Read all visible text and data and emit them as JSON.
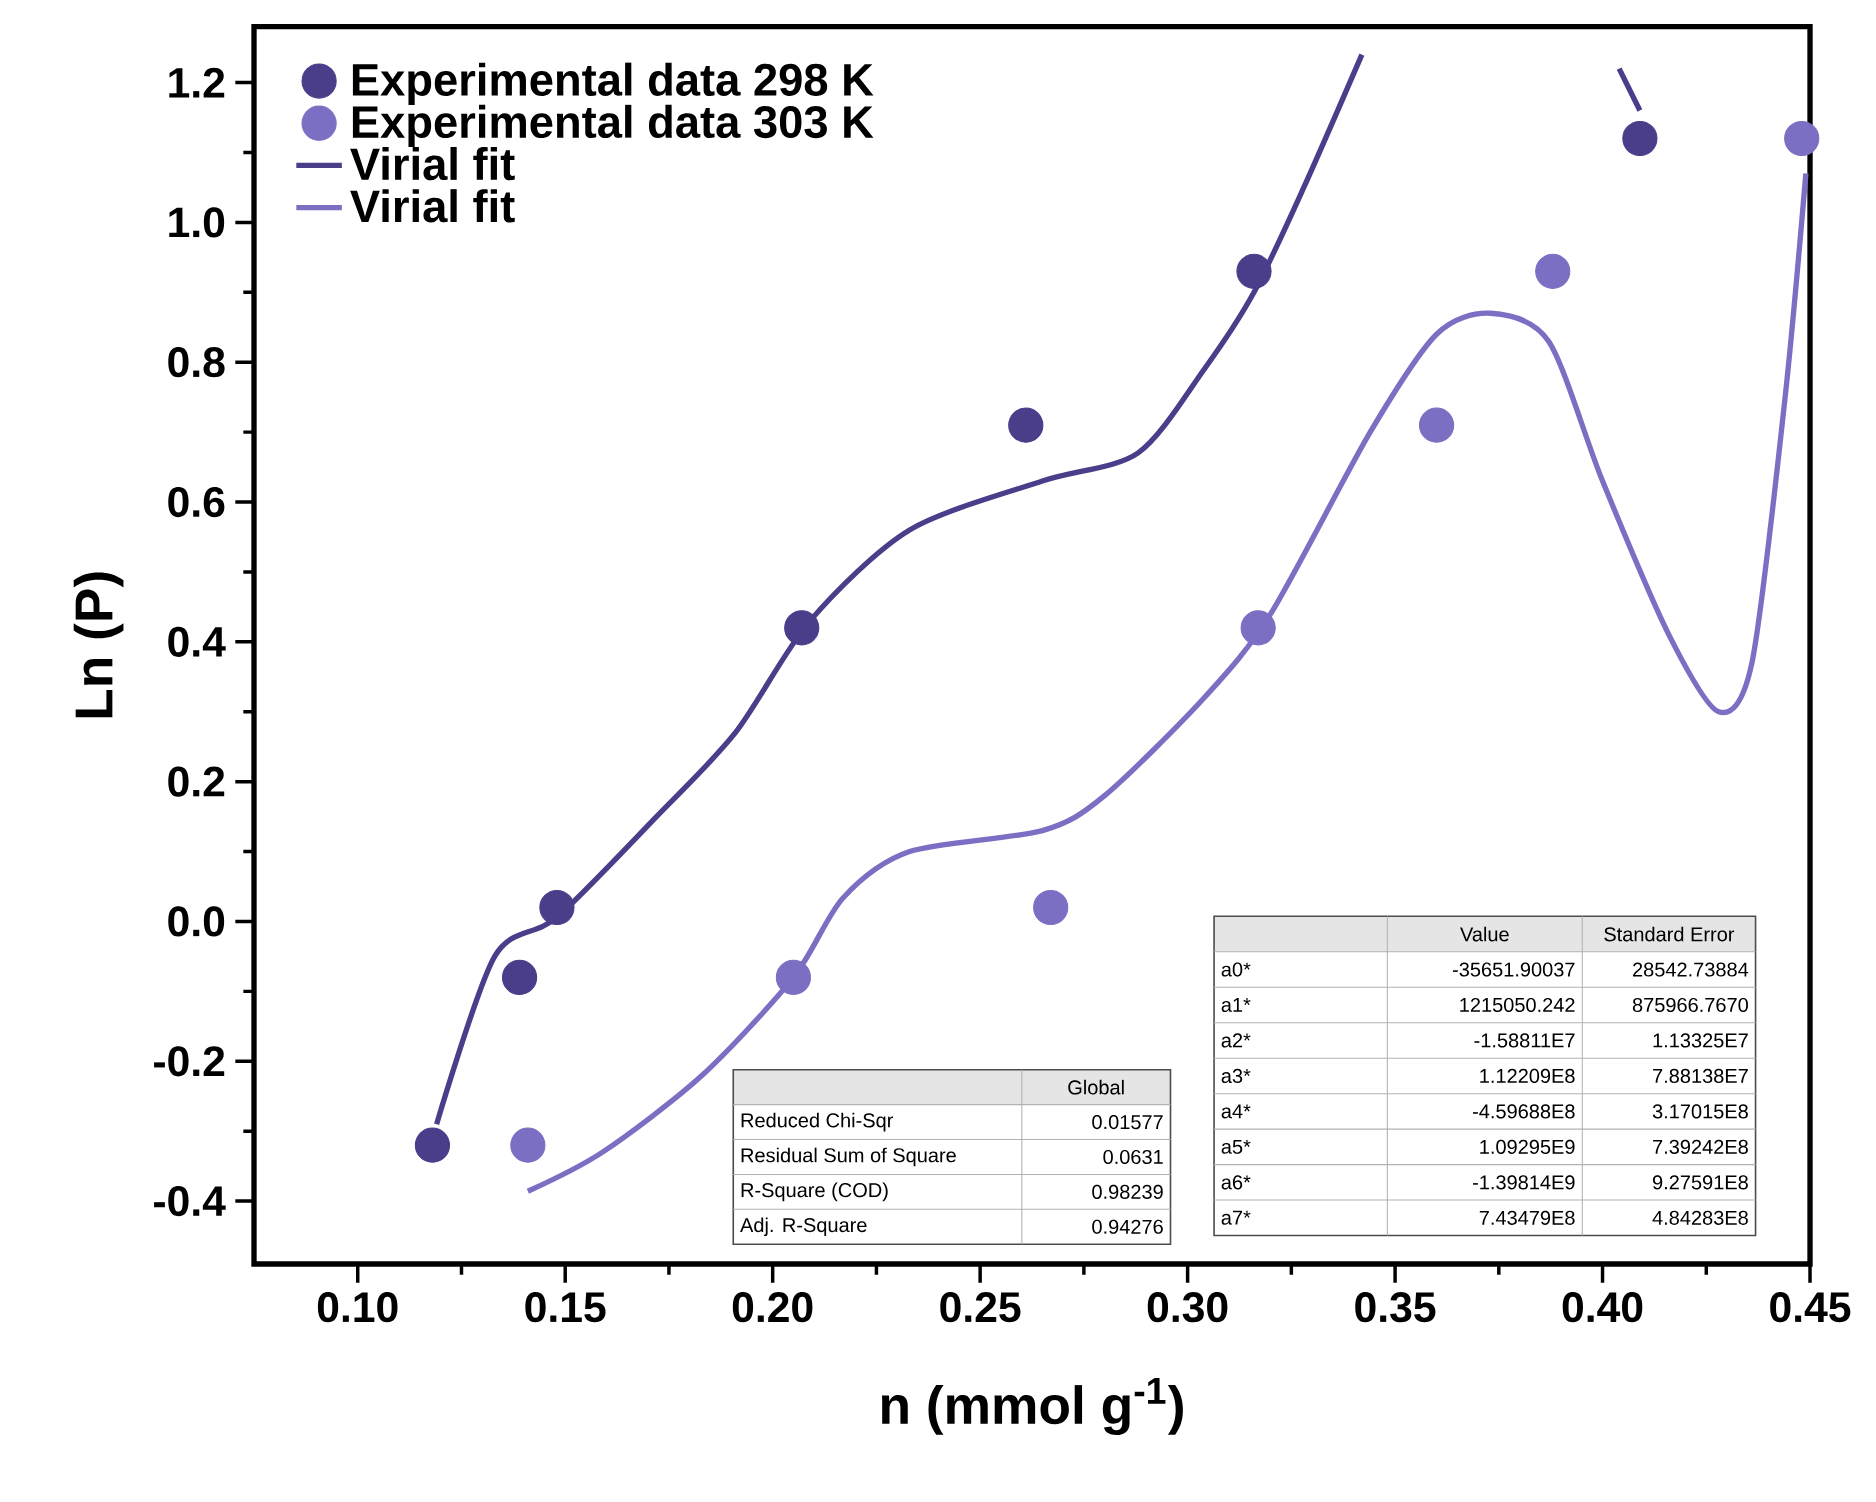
{
  "chart_data": {
    "type": "scatter",
    "xlabel": "n (mmol g$^{-1}$)",
    "ylabel": "Ln (P)",
    "xlim": [
      0.075,
      0.45
    ],
    "ylim": [
      -0.49,
      1.28
    ],
    "xticks": [
      {
        "value": 0.1,
        "label": "0.10"
      },
      {
        "value": 0.15,
        "label": "0.15"
      },
      {
        "value": 0.2,
        "label": "0.20"
      },
      {
        "value": 0.25,
        "label": "0.25"
      },
      {
        "value": 0.3,
        "label": "0.30"
      },
      {
        "value": 0.35,
        "label": "0.35"
      },
      {
        "value": 0.4,
        "label": "0.40"
      },
      {
        "value": 0.45,
        "label": "0.45"
      }
    ],
    "yticks": [
      {
        "value": -0.4,
        "label": "-0.4"
      },
      {
        "value": -0.2,
        "label": "-0.2"
      },
      {
        "value": 0,
        "label": "0.0"
      },
      {
        "value": 0.2,
        "label": "0.2"
      },
      {
        "value": 0.4,
        "label": "0.4"
      },
      {
        "value": 0.6,
        "label": "0.6"
      },
      {
        "value": 0.8,
        "label": "0.8"
      },
      {
        "value": 1.0,
        "label": "1.0"
      },
      {
        "value": 1.2,
        "label": "1.2"
      }
    ],
    "legend": "top left",
    "series": [
      {
        "name": "Experimental data 298 K",
        "marker": "circle",
        "color": "#4a3d8a",
        "x": [
          0.118,
          0.139,
          0.148,
          0.207,
          0.261,
          0.316,
          0.409
        ],
        "values": [
          -0.32,
          -0.08,
          0.02,
          0.42,
          0.71,
          0.93,
          1.12
        ]
      },
      {
        "name": "Experimental data 303 K",
        "marker": "circle",
        "color": "#7b6fc4",
        "x": [
          0.141,
          0.205,
          0.267,
          0.317,
          0.36,
          0.388,
          0.448
        ],
        "values": [
          -0.32,
          -0.08,
          0.02,
          0.42,
          0.71,
          0.93,
          1.12
        ]
      },
      {
        "name": "Virial fit",
        "type": "line",
        "marker": "none",
        "color": "#4a3d8a",
        "x": [
          0.119,
          0.133,
          0.148,
          0.172,
          0.191,
          0.209,
          0.233,
          0.265,
          0.288,
          0.304,
          0.316,
          0.328,
          0.342,
          0.37,
          0.404,
          0.409
        ],
        "values": [
          -0.29,
          -0.05,
          0.006,
          0.15,
          0.27,
          0.43,
          0.56,
          0.63,
          0.67,
          0.79,
          0.9,
          1.05,
          1.24,
          null,
          1.22,
          1.16
        ]
      },
      {
        "name": "Virial fit",
        "type": "line",
        "marker": "none",
        "color": "#7b6fc4",
        "x": [
          0.141,
          0.159,
          0.183,
          0.205,
          0.217,
          0.233,
          0.265,
          0.28,
          0.304,
          0.32,
          0.344,
          0.36,
          0.373,
          0.387,
          0.4,
          0.416,
          0.428,
          0.436,
          0.444,
          0.449
        ],
        "values": [
          -0.386,
          -0.33,
          -0.22,
          -0.08,
          0.034,
          0.1,
          0.13,
          0.18,
          0.32,
          0.44,
          0.7,
          0.84,
          0.87,
          0.83,
          0.63,
          0.41,
          0.3,
          0.37,
          0.75,
          1.07
        ]
      }
    ],
    "annotations": [
      "Global",
      "Reduced Chi-Sqr",
      "0.01577",
      "Residual Sum of Square",
      "0.0631",
      "R-Square (COD)",
      "0.98239",
      "Adj. R-Square",
      "0.94276",
      "Value",
      "Standard Error",
      "a0*",
      "-35651.90037",
      "28542.73884",
      "a1*",
      "1215050.242",
      "875966.7670",
      "a2*",
      "-1.58811E7",
      "1.13325E7",
      "a3*",
      "1.12209E8",
      "7.88138E7",
      "a4*",
      "-4.59688E8",
      "3.17015E8",
      "a5*",
      "1.09295E9",
      "7.39242E8",
      "a6*",
      "-1.39814E9",
      "9.27591E8",
      "a7*",
      "7.43479E8",
      "4.84283E8"
    ]
  }
}
